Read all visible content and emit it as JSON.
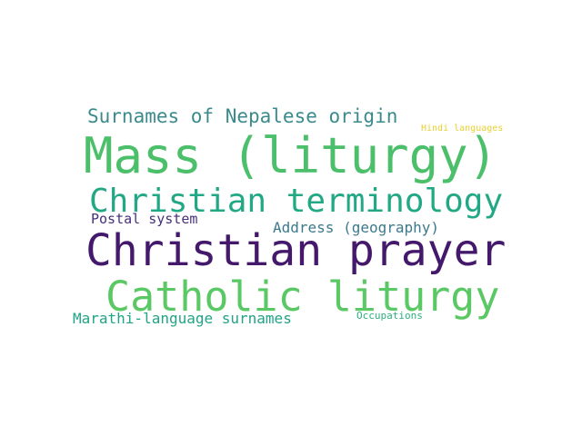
{
  "words": [
    {
      "id": "nepalese",
      "text": "Surnames of Nepalese origin",
      "color": "#3b8a8c"
    },
    {
      "id": "hindi",
      "text": "Hindi languages",
      "color": "#e6d033"
    },
    {
      "id": "mass",
      "text": "Mass (liturgy)",
      "color": "#4cbf6b"
    },
    {
      "id": "terminology",
      "text": "Christian terminology",
      "color": "#22a884"
    },
    {
      "id": "postal",
      "text": "Postal system",
      "color": "#46307c"
    },
    {
      "id": "address",
      "text": "Address (geography)",
      "color": "#3b7a8c"
    },
    {
      "id": "prayer",
      "text": "Christian prayer",
      "color": "#44196b"
    },
    {
      "id": "catholic",
      "text": "Catholic liturgy",
      "color": "#5ac864"
    },
    {
      "id": "marathi",
      "text": "Marathi-language surnames",
      "color": "#21a386"
    },
    {
      "id": "occupations",
      "text": "Occupations",
      "color": "#2ab07f"
    }
  ]
}
